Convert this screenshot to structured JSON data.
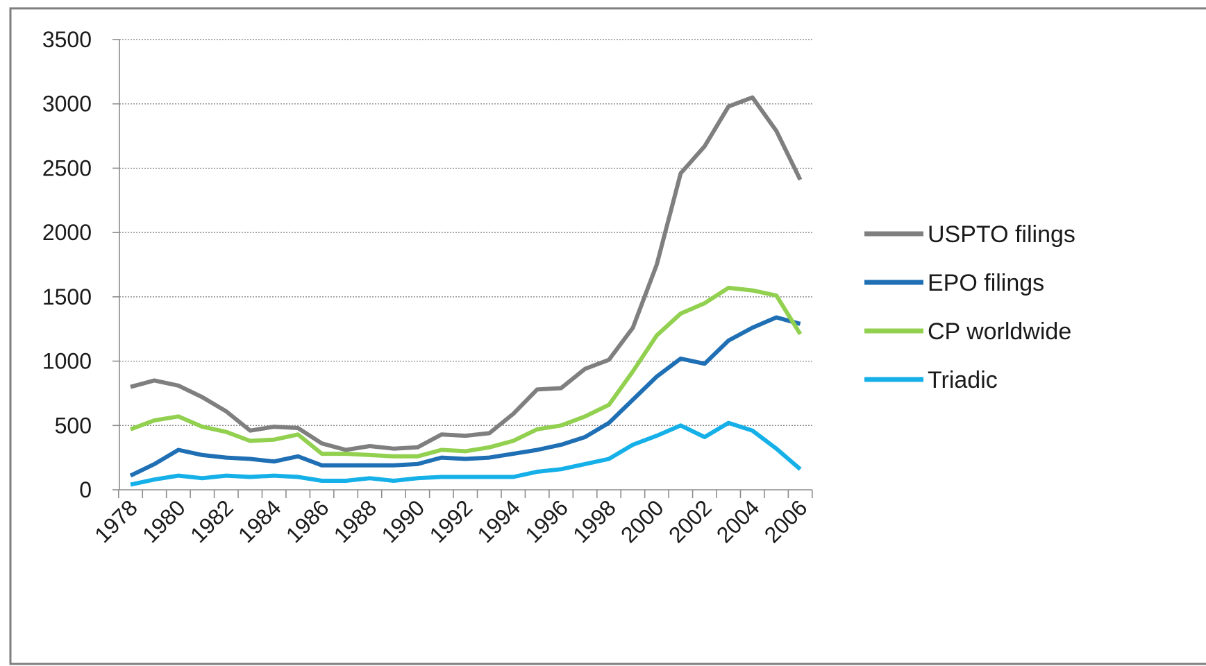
{
  "chart_data": {
    "type": "line",
    "title": "",
    "xlabel": "",
    "ylabel": "",
    "ylim": [
      0,
      3500
    ],
    "yticks": [
      0,
      500,
      1000,
      1500,
      2000,
      2500,
      3000,
      3500
    ],
    "x": [
      1978,
      1979,
      1980,
      1981,
      1982,
      1983,
      1984,
      1985,
      1986,
      1987,
      1988,
      1989,
      1990,
      1991,
      1992,
      1993,
      1994,
      1995,
      1996,
      1997,
      1998,
      1999,
      2000,
      2001,
      2002,
      2003,
      2004,
      2005,
      2006
    ],
    "xtick_labels": [
      "1978",
      "1980",
      "1982",
      "1984",
      "1986",
      "1988",
      "1990",
      "1992",
      "1994",
      "1996",
      "1998",
      "2000",
      "2002",
      "2004",
      "2006"
    ],
    "grid": "horizontal dotted",
    "legend_position": "right",
    "series": [
      {
        "name": "USPTO filings",
        "color": "#7f7f7f",
        "values": [
          800,
          850,
          810,
          720,
          610,
          460,
          490,
          480,
          360,
          310,
          340,
          320,
          330,
          430,
          420,
          440,
          590,
          780,
          790,
          940,
          1010,
          1260,
          1750,
          2460,
          2670,
          2980,
          3050,
          2790,
          2410
        ]
      },
      {
        "name": "EPO filings",
        "color": "#1f6fb4",
        "values": [
          110,
          200,
          310,
          270,
          250,
          240,
          220,
          260,
          190,
          190,
          190,
          190,
          200,
          250,
          240,
          250,
          280,
          310,
          350,
          410,
          520,
          700,
          880,
          1020,
          980,
          1160,
          1260,
          1340,
          1290
        ]
      },
      {
        "name": "CP worldwide",
        "color": "#92d050",
        "values": [
          470,
          540,
          570,
          490,
          450,
          380,
          390,
          430,
          280,
          280,
          270,
          260,
          260,
          310,
          300,
          330,
          380,
          470,
          500,
          570,
          660,
          920,
          1200,
          1370,
          1450,
          1570,
          1550,
          1510,
          1210
        ]
      },
      {
        "name": "Triadic",
        "color": "#16b0e8",
        "values": [
          40,
          80,
          110,
          90,
          110,
          100,
          110,
          100,
          70,
          70,
          90,
          70,
          90,
          100,
          100,
          100,
          100,
          140,
          160,
          200,
          240,
          350,
          420,
          500,
          410,
          520,
          460,
          320,
          160
        ]
      }
    ]
  }
}
